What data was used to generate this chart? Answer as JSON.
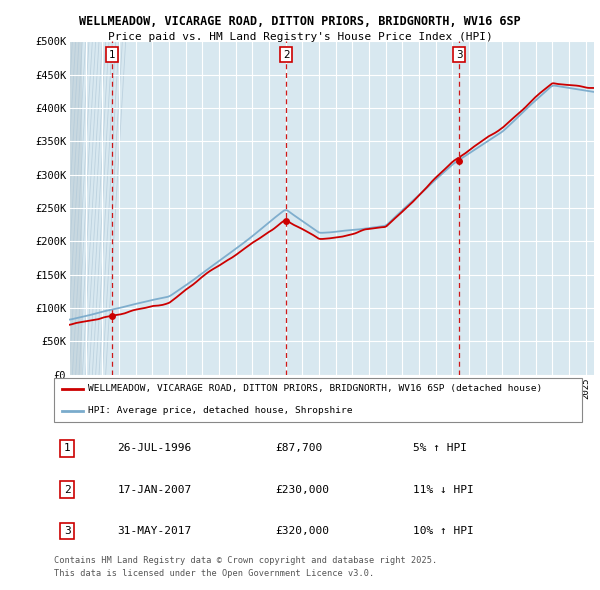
{
  "title1": "WELLMEADOW, VICARAGE ROAD, DITTON PRIORS, BRIDGNORTH, WV16 6SP",
  "title2": "Price paid vs. HM Land Registry's House Price Index (HPI)",
  "ylim": [
    0,
    500000
  ],
  "yticks": [
    0,
    50000,
    100000,
    150000,
    200000,
    250000,
    300000,
    350000,
    400000,
    450000,
    500000
  ],
  "ytick_labels": [
    "£0",
    "£50K",
    "£100K",
    "£150K",
    "£200K",
    "£250K",
    "£300K",
    "£350K",
    "£400K",
    "£450K",
    "£500K"
  ],
  "plot_bg_color": "#d8e8f0",
  "grid_color": "#ffffff",
  "sale_dates": [
    1996.57,
    2007.04,
    2017.42
  ],
  "sale_prices": [
    87700,
    230000,
    320000
  ],
  "sale_labels": [
    "1",
    "2",
    "3"
  ],
  "legend_label_red": "WELLMEADOW, VICARAGE ROAD, DITTON PRIORS, BRIDGNORTH, WV16 6SP (detached house)",
  "legend_label_blue": "HPI: Average price, detached house, Shropshire",
  "table_rows": [
    [
      "1",
      "26-JUL-1996",
      "£87,700",
      "5% ↑ HPI"
    ],
    [
      "2",
      "17-JAN-2007",
      "£230,000",
      "11% ↓ HPI"
    ],
    [
      "3",
      "31-MAY-2017",
      "£320,000",
      "10% ↑ HPI"
    ]
  ],
  "footnote1": "Contains HM Land Registry data © Crown copyright and database right 2025.",
  "footnote2": "This data is licensed under the Open Government Licence v3.0.",
  "red_color": "#cc0000",
  "blue_color": "#7aabcc",
  "xmin": 1994.0,
  "xmax": 2025.5
}
